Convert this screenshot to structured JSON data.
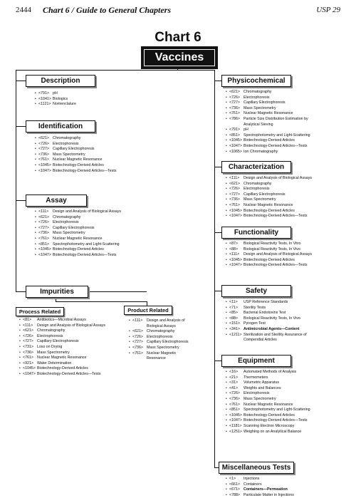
{
  "header": {
    "page_number": "2444",
    "title": "Chart 6 / Guide to General Chapters",
    "usp": "USP 29"
  },
  "chart_title": "Chart 6",
  "banner": "Vaccines",
  "left": [
    {
      "key": "description",
      "title": "Description",
      "items": [
        {
          "code": "<791>",
          "name": "pH"
        },
        {
          "code": "<1041>",
          "name": "Biologics"
        },
        {
          "code": "<1121>",
          "name": "Nomenclature"
        }
      ]
    },
    {
      "key": "identification",
      "title": "Identification",
      "items": [
        {
          "code": "<621>",
          "name": "Chromatography"
        },
        {
          "code": "<726>",
          "name": "Electrophoresis"
        },
        {
          "code": "<727>",
          "name": "Capillary Electrophoresis"
        },
        {
          "code": "<736>",
          "name": "Mass Spectrometry"
        },
        {
          "code": "<761>",
          "name": "Nuclear Magnetic Resonance"
        },
        {
          "code": "<1045>",
          "name": "Biotechnology-Derived Articles"
        },
        {
          "code": "<1047>",
          "name": "Biotechnology-Derived Articles—Tests"
        }
      ]
    },
    {
      "key": "assay",
      "title": "Assay",
      "items": [
        {
          "code": "<111>",
          "name": "Design and Analysis of Biological Assays"
        },
        {
          "code": "<621>",
          "name": "Chromatography"
        },
        {
          "code": "<726>",
          "name": "Electrophoresis"
        },
        {
          "code": "<727>",
          "name": "Capillary Electrophoresis"
        },
        {
          "code": "<736>",
          "name": "Mass Spectrometry"
        },
        {
          "code": "<761>",
          "name": "Nuclear Magnetic Resonance"
        },
        {
          "code": "<851>",
          "name": "Spectrophotometry and Light-Scattering"
        },
        {
          "code": "<1045>",
          "name": "Biotechnology-Derived Articles"
        },
        {
          "code": "<1047>",
          "name": "Biotechnology-Derived Articles—Tests"
        }
      ]
    }
  ],
  "impurities": {
    "title": "Impurities",
    "process": {
      "title": "Process Related",
      "items": [
        {
          "code": "<81>",
          "name": "Antibiotics—Microbial Assays"
        },
        {
          "code": "<111>",
          "name": "Design and Analysis of Biological Assays"
        },
        {
          "code": "<621>",
          "name": "Chromatography"
        },
        {
          "code": "<726>",
          "name": "Electrophoresis"
        },
        {
          "code": "<727>",
          "name": "Capillary Electrophoresis"
        },
        {
          "code": "<731>",
          "name": "Loss on Drying"
        },
        {
          "code": "<736>",
          "name": "Mass Spectrometry"
        },
        {
          "code": "<761>",
          "name": "Nuclear Magnetic Resonance"
        },
        {
          "code": "<921>",
          "name": "Water Determination"
        },
        {
          "code": "<1045>",
          "name": "Biotechnology-Derived Articles"
        },
        {
          "code": "<1047>",
          "name": "Biotechnology-Derived Articles—Tests"
        }
      ]
    },
    "product": {
      "title": "Product Related",
      "items": [
        {
          "code": "<111>",
          "name": "Design and Analysis of",
          "name2": "Biological Assays"
        },
        {
          "code": "<621>",
          "name": "Chromatography"
        },
        {
          "code": "<726>",
          "name": "Electrophoresis"
        },
        {
          "code": "<727>",
          "name": "Capillary Electrophoresis"
        },
        {
          "code": "<736>",
          "name": "Mass Spectrometry"
        },
        {
          "code": "<761>",
          "name": "Nuclear Magnetic",
          "name2": "Resonance"
        }
      ]
    }
  },
  "right": [
    {
      "key": "physicochemical",
      "title": "Physicochemical",
      "items": [
        {
          "code": "<621>",
          "name": "Chromatography"
        },
        {
          "code": "<726>",
          "name": "Electrophoresis"
        },
        {
          "code": "<727>",
          "name": "Capillary Electrophoresis"
        },
        {
          "code": "<736>",
          "name": "Mass Spectrometry"
        },
        {
          "code": "<761>",
          "name": "Nuclear Magnetic Resonance"
        },
        {
          "code": "<786>",
          "name": "Particle Size Distribution Estimation by",
          "name2": "Analytical Sieving"
        },
        {
          "code": "<791>",
          "name": "pH"
        },
        {
          "code": "<851>",
          "name": "Spectrophotometry and Light-Scattering"
        },
        {
          "code": "<1045>",
          "name": "Biotechnology-Derived Articles"
        },
        {
          "code": "<1047>",
          "name": "Biotechnology-Derived Articles—Tests"
        },
        {
          "code": "<1065>",
          "name": "Ion Chromatography"
        }
      ]
    },
    {
      "key": "characterization",
      "title": "Characterization",
      "items": [
        {
          "code": "<111>",
          "name": "Design and Analysis of Biological Assays"
        },
        {
          "code": "<621>",
          "name": "Chromatography"
        },
        {
          "code": "<726>",
          "name": "Electrophoresis"
        },
        {
          "code": "<727>",
          "name": "Capillary Electrophoresis"
        },
        {
          "code": "<736>",
          "name": "Mass Spectrometry"
        },
        {
          "code": "<761>",
          "name": "Nuclear Magnetic Resonance"
        },
        {
          "code": "<1045>",
          "name": "Biotechnology-Derived Articles"
        },
        {
          "code": "<1047>",
          "name": "Biotechnology-Derived Articles—Tests"
        }
      ]
    },
    {
      "key": "functionality",
      "title": "Functionality",
      "items": [
        {
          "code": "<87>",
          "name": "Biological Reactivity Tests, In Vitro"
        },
        {
          "code": "<88>",
          "name": "Biological Reactivity Tests, In Vivo"
        },
        {
          "code": "<111>",
          "name": "Design and Analysis of Biological Assays"
        },
        {
          "code": "<1045>",
          "name": "Biotechnology-Derived Articles"
        },
        {
          "code": "<1047>",
          "name": "Biotechnology-Derived Articles—Tests"
        }
      ]
    },
    {
      "key": "safety",
      "title": "Safety",
      "items": [
        {
          "code": "<11>",
          "name": "USP Reference Standards"
        },
        {
          "code": "<71>",
          "name": "Sterility Tests"
        },
        {
          "code": "<85>",
          "name": "Bacterial Endotoxins Test"
        },
        {
          "code": "<88>",
          "name": "Biological Reactivity Tests, In Vivo"
        },
        {
          "code": "<151>",
          "name": "Pyrogen Test"
        },
        {
          "code": "<341>",
          "name": "Antimicrobial Agents—Content",
          "bold": true
        },
        {
          "code": "<1211>",
          "name": "Sterilization and Sterility Assurance of",
          "name2": "Compendial Articles"
        }
      ]
    },
    {
      "key": "equipment",
      "title": "Equipment",
      "items": [
        {
          "code": "<16>",
          "name": "Automated Methods of Analysis"
        },
        {
          "code": "<21>",
          "name": "Thermometers"
        },
        {
          "code": "<31>",
          "name": "Volumetric Apparatus"
        },
        {
          "code": "<41>",
          "name": "Weights and Balances"
        },
        {
          "code": "<726>",
          "name": "Electrophoresis"
        },
        {
          "code": "<736>",
          "name": "Mass Spectrometry"
        },
        {
          "code": "<761>",
          "name": "Nuclear Magnetic Resonance"
        },
        {
          "code": "<851>",
          "name": "Spectrophotometry and Light-Scattering"
        },
        {
          "code": "<1045>",
          "name": "Biotechnology-Derived Articles"
        },
        {
          "code": "<1047>",
          "name": "Biotechnology-Derived Articles—Tests"
        },
        {
          "code": "<1181>",
          "name": "Scanning Electron Microscopy"
        },
        {
          "code": "<1251>",
          "name": "Weighing on an Analytical Balance"
        }
      ]
    },
    {
      "key": "miscellaneous",
      "title": "Miscellaneous Tests",
      "items": [
        {
          "code": "<1>",
          "name": "Injections"
        },
        {
          "code": "<661>",
          "name": "Containers"
        },
        {
          "code": "<671>",
          "name": "Containers—Permeation",
          "bold": true
        },
        {
          "code": "<788>",
          "name": "Particulate Matter in Injections"
        }
      ]
    }
  ]
}
